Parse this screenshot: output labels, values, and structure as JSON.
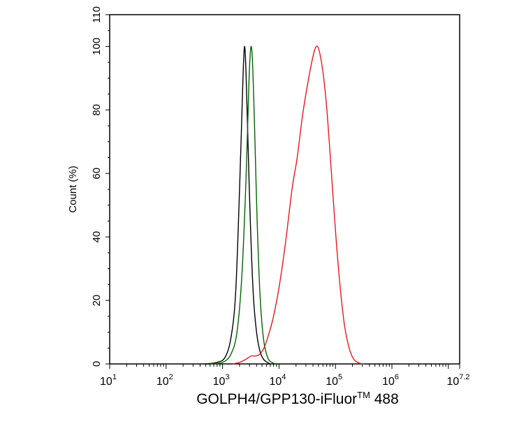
{
  "chart_data": {
    "type": "line",
    "xscale": "log",
    "xlim": [
      10,
      15848932
    ],
    "ylim": [
      0,
      110
    ],
    "grid": false,
    "legend": "none",
    "ylabel": "Count  (%)",
    "xlabel": {
      "main": "GOLPH4/GPP130-iFluor",
      "sup": "TM",
      "tail": " 488"
    },
    "yticks": [
      0,
      20,
      40,
      60,
      80,
      100,
      110
    ],
    "xticks": [
      {
        "value": 10,
        "base": "10",
        "exp": "1"
      },
      {
        "value": 100,
        "base": "10",
        "exp": "2"
      },
      {
        "value": 1000,
        "base": "10",
        "exp": "3"
      },
      {
        "value": 10000,
        "base": "10",
        "exp": "4"
      },
      {
        "value": 100000,
        "base": "10",
        "exp": "5"
      },
      {
        "value": 1000000,
        "base": "10",
        "exp": "6"
      },
      {
        "value": 15848932,
        "base": "10",
        "exp": "7.2"
      }
    ],
    "series": [
      {
        "color": "#000000",
        "points": [
          [
            500,
            0
          ],
          [
            800,
            0.5
          ],
          [
            1100,
            2
          ],
          [
            1400,
            8
          ],
          [
            1700,
            22
          ],
          [
            2000,
            55
          ],
          [
            2300,
            90
          ],
          [
            2450,
            100
          ],
          [
            2600,
            92
          ],
          [
            2800,
            72
          ],
          [
            3100,
            45
          ],
          [
            3500,
            22
          ],
          [
            4000,
            10
          ],
          [
            4600,
            4
          ],
          [
            5300,
            1.5
          ],
          [
            6200,
            0.5
          ],
          [
            7000,
            0
          ]
        ]
      },
      {
        "color": "#006400",
        "points": [
          [
            600,
            0
          ],
          [
            1000,
            0.5
          ],
          [
            1400,
            3
          ],
          [
            1800,
            10
          ],
          [
            2200,
            28
          ],
          [
            2600,
            58
          ],
          [
            2950,
            90
          ],
          [
            3200,
            100
          ],
          [
            3450,
            92
          ],
          [
            3750,
            70
          ],
          [
            4100,
            45
          ],
          [
            4600,
            22
          ],
          [
            5300,
            8
          ],
          [
            6300,
            2
          ],
          [
            7600,
            0.4
          ],
          [
            9000,
            0
          ]
        ]
      },
      {
        "color": "#e41a1c",
        "points": [
          [
            1500,
            0
          ],
          [
            2000,
            0.5
          ],
          [
            2600,
            1.5
          ],
          [
            3200,
            2.5
          ],
          [
            3800,
            2.5
          ],
          [
            4500,
            3
          ],
          [
            5400,
            5
          ],
          [
            6500,
            9
          ],
          [
            8000,
            15
          ],
          [
            10000,
            24
          ],
          [
            13000,
            38
          ],
          [
            17000,
            55
          ],
          [
            21000,
            65
          ],
          [
            26000,
            78
          ],
          [
            32000,
            88
          ],
          [
            38000,
            95
          ],
          [
            43000,
            99
          ],
          [
            48000,
            100
          ],
          [
            54000,
            97
          ],
          [
            62000,
            90
          ],
          [
            72000,
            78
          ],
          [
            85000,
            60
          ],
          [
            100000,
            42
          ],
          [
            120000,
            25
          ],
          [
            145000,
            12
          ],
          [
            175000,
            5
          ],
          [
            210000,
            1.5
          ],
          [
            260000,
            0.3
          ],
          [
            320000,
            0
          ]
        ]
      }
    ]
  }
}
